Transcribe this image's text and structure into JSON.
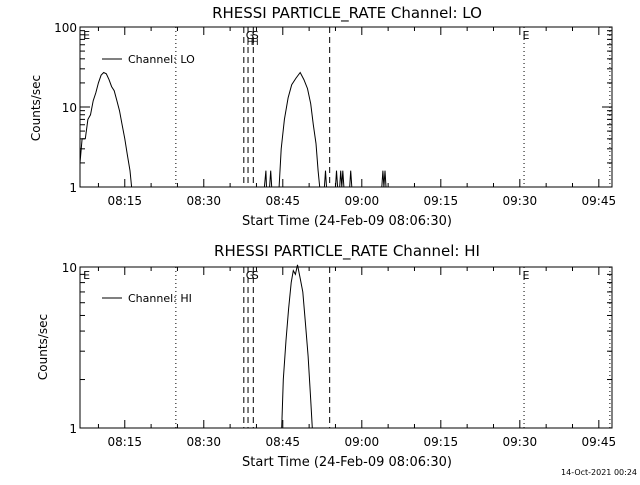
{
  "footer_timestamp": "14-Oct-2021 00:24",
  "chart_data": [
    {
      "type": "line",
      "title": "RHESSI PARTICLE_RATE Channel: LO",
      "xlabel": "Start Time (24-Feb-09 08:06:30)",
      "ylabel": "Counts/sec",
      "y_scale": "log",
      "ylim": [
        1,
        100
      ],
      "y_ticks": [
        {
          "value": 1,
          "label": "1"
        },
        {
          "value": 10,
          "label": "10"
        },
        {
          "value": 100,
          "label": "100"
        }
      ],
      "x_unit": "minutes since 08:06:30",
      "xlim": [
        0,
        101
      ],
      "x_ticks": [
        {
          "value": 8.5,
          "label": "08:15"
        },
        {
          "value": 23.5,
          "label": "08:30"
        },
        {
          "value": 38.5,
          "label": "08:45"
        },
        {
          "value": 53.5,
          "label": "09:00"
        },
        {
          "value": 68.5,
          "label": "09:15"
        },
        {
          "value": 83.5,
          "label": "09:30"
        },
        {
          "value": 98.5,
          "label": "09:45"
        }
      ],
      "legend": {
        "position": "top-left",
        "entries": [
          "Channel: LO"
        ]
      },
      "markers": [
        {
          "x": 0.4,
          "style": "none",
          "label": "E"
        },
        {
          "x": 18.2,
          "style": "dotted",
          "label": ""
        },
        {
          "x": 31.1,
          "style": "dashed",
          "label": ""
        },
        {
          "x": 31.9,
          "style": "dashed",
          "label": "G"
        },
        {
          "x": 32.9,
          "style": "dashed",
          "label": "S"
        },
        {
          "x": 47.4,
          "style": "dashed",
          "label": ""
        },
        {
          "x": 84.3,
          "style": "dotted",
          "label": "E"
        },
        {
          "x": 100.6,
          "style": "dotted",
          "label": ""
        }
      ],
      "sub_labels": [
        {
          "x": 31.9,
          "label": "H"
        },
        {
          "x": 32.9,
          "label": "H"
        }
      ],
      "series": [
        {
          "name": "Channel: LO",
          "segments": [
            [
              [
                0,
                2
              ],
              [
                0.4,
                4
              ],
              [
                1,
                4
              ],
              [
                1.5,
                7
              ],
              [
                2,
                8
              ],
              [
                2.5,
                12
              ],
              [
                3,
                15
              ],
              [
                3.5,
                20
              ],
              [
                4,
                25
              ],
              [
                4.5,
                27
              ],
              [
                5,
                26
              ],
              [
                5.5,
                22
              ],
              [
                6,
                18
              ],
              [
                6.5,
                16
              ],
              [
                7,
                12
              ],
              [
                7.5,
                9
              ],
              [
                8,
                6
              ],
              [
                8.5,
                4
              ],
              [
                9,
                2.5
              ],
              [
                9.5,
                1.6
              ],
              [
                9.8,
                1
              ]
            ],
            [
              [
                35,
                1
              ],
              [
                35.3,
                1.6
              ],
              [
                35.4,
                1
              ],
              [
                36,
                1
              ],
              [
                36.2,
                1.6
              ],
              [
                36.4,
                1
              ]
            ],
            [
              [
                37.8,
                1
              ],
              [
                38.2,
                3
              ],
              [
                38.8,
                7
              ],
              [
                39.5,
                13
              ],
              [
                40.2,
                19
              ],
              [
                41,
                23
              ],
              [
                41.8,
                27
              ],
              [
                42.5,
                22
              ],
              [
                43.2,
                17
              ],
              [
                43.8,
                11
              ],
              [
                44.3,
                6
              ],
              [
                44.8,
                3.5
              ],
              [
                45.2,
                1.6
              ],
              [
                45.5,
                1
              ]
            ],
            [
              [
                46.4,
                1
              ],
              [
                46.6,
                1.6
              ],
              [
                46.8,
                1
              ]
            ],
            [
              [
                48.5,
                1
              ],
              [
                48.7,
                1.6
              ],
              [
                48.9,
                1
              ]
            ],
            [
              [
                49.3,
                1
              ],
              [
                49.5,
                1.6
              ],
              [
                49.7,
                1
              ],
              [
                49.9,
                1.6
              ],
              [
                50.1,
                1
              ]
            ],
            [
              [
                51.2,
                1
              ],
              [
                51.4,
                1.6
              ],
              [
                51.6,
                1
              ]
            ],
            [
              [
                57.3,
                1
              ],
              [
                57.5,
                1.6
              ],
              [
                57.7,
                1
              ],
              [
                57.9,
                1.6
              ],
              [
                58.1,
                1
              ]
            ]
          ]
        }
      ]
    },
    {
      "type": "line",
      "title": "RHESSI PARTICLE_RATE Channel: HI",
      "xlabel": "Start Time (24-Feb-09 08:06:30)",
      "ylabel": "Counts/sec",
      "y_scale": "log",
      "ylim": [
        1,
        10
      ],
      "y_ticks": [
        {
          "value": 1,
          "label": "1"
        },
        {
          "value": 10,
          "label": "10"
        }
      ],
      "x_unit": "minutes since 08:06:30",
      "xlim": [
        0,
        101
      ],
      "x_ticks": [
        {
          "value": 8.5,
          "label": "08:15"
        },
        {
          "value": 23.5,
          "label": "08:30"
        },
        {
          "value": 38.5,
          "label": "08:45"
        },
        {
          "value": 53.5,
          "label": "09:00"
        },
        {
          "value": 68.5,
          "label": "09:15"
        },
        {
          "value": 83.5,
          "label": "09:30"
        },
        {
          "value": 98.5,
          "label": "09:45"
        }
      ],
      "legend": {
        "position": "top-left",
        "entries": [
          "Channel: HI"
        ]
      },
      "markers": [
        {
          "x": 0.4,
          "style": "none",
          "label": "E"
        },
        {
          "x": 18.2,
          "style": "dotted",
          "label": ""
        },
        {
          "x": 31.1,
          "style": "dashed",
          "label": ""
        },
        {
          "x": 31.9,
          "style": "dashed",
          "label": "G"
        },
        {
          "x": 32.9,
          "style": "dashed",
          "label": "S"
        },
        {
          "x": 47.4,
          "style": "dashed",
          "label": ""
        },
        {
          "x": 84.3,
          "style": "dotted",
          "label": "E"
        },
        {
          "x": 100.6,
          "style": "dotted",
          "label": ""
        }
      ],
      "sub_labels": [],
      "series": [
        {
          "name": "Channel: HI",
          "segments": [
            [
              [
                38.3,
                1
              ],
              [
                38.6,
                2
              ],
              [
                39.1,
                3.5
              ],
              [
                39.6,
                5.5
              ],
              [
                40.1,
                8
              ],
              [
                40.5,
                9.5
              ],
              [
                40.9,
                9
              ],
              [
                41.3,
                10.3
              ],
              [
                41.8,
                8.5
              ],
              [
                42.3,
                7
              ],
              [
                42.8,
                4.5
              ],
              [
                43.3,
                2.8
              ],
              [
                43.8,
                1.5
              ],
              [
                44.1,
                1
              ]
            ]
          ]
        }
      ]
    }
  ]
}
